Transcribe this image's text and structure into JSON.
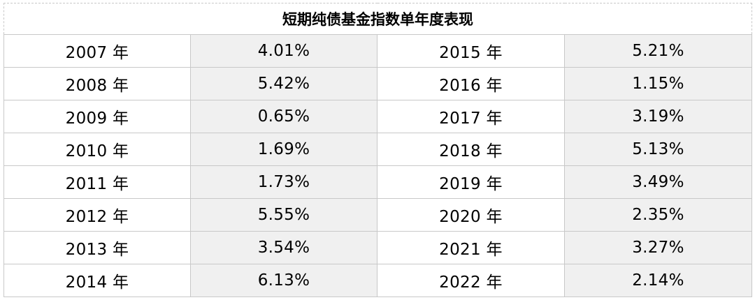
{
  "chart_data": {
    "type": "table",
    "title": "短期纯债基金指数单年度表现",
    "rows": [
      {
        "left_year": "2007 年",
        "left_value": "4.01%",
        "right_year": "2015 年",
        "right_value": "5.21%"
      },
      {
        "left_year": "2008 年",
        "left_value": "5.42%",
        "right_year": "2016 年",
        "right_value": "1.15%"
      },
      {
        "left_year": "2009 年",
        "left_value": "0.65%",
        "right_year": "2017 年",
        "right_value": "3.19%"
      },
      {
        "left_year": "2010 年",
        "left_value": "1.69%",
        "right_year": "2018 年",
        "right_value": "5.13%"
      },
      {
        "left_year": "2011 年",
        "left_value": "1.73%",
        "right_year": "2019 年",
        "right_value": "3.49%"
      },
      {
        "left_year": "2012 年",
        "left_value": "5.55%",
        "right_year": "2020 年",
        "right_value": "2.35%"
      },
      {
        "left_year": "2013 年",
        "left_value": "3.54%",
        "right_year": "2021 年",
        "right_value": "3.27%"
      },
      {
        "left_year": "2014 年",
        "left_value": "6.13%",
        "right_year": "2022 年",
        "right_value": "2.14%"
      }
    ]
  }
}
